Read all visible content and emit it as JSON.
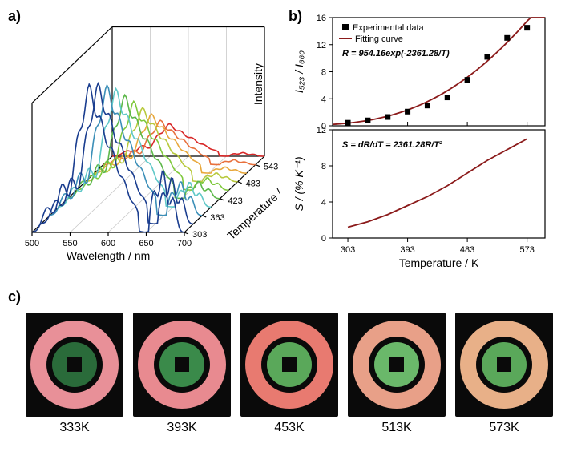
{
  "panelA": {
    "label": "a)",
    "x_axis_label": "Wavelength / nm",
    "y_axis_label": "Intensity",
    "z_axis_label": "Temperature / K",
    "x_ticks": [
      "500",
      "550",
      "600",
      "650",
      "700"
    ],
    "z_ticks": [
      "303",
      "363",
      "423",
      "483",
      "543"
    ],
    "x_range": [
      500,
      700
    ],
    "temps": [
      303,
      333,
      363,
      393,
      423,
      453,
      483,
      513,
      543,
      573
    ],
    "colors": [
      "#1a3d8f",
      "#1a3d8f",
      "#3c8fb8",
      "#5fc8c8",
      "#5db84a",
      "#7fc93c",
      "#b8c93c",
      "#e8a83c",
      "#e8703c",
      "#d82828"
    ],
    "spectrum_main_peaks": [
      {
        "x": 520,
        "h": 0.18
      },
      {
        "x": 540,
        "h": 0.35
      },
      {
        "x": 560,
        "h": 0.65
      },
      {
        "x": 575,
        "h": 1.0
      },
      {
        "x": 590,
        "h": 0.75
      },
      {
        "x": 605,
        "h": 0.55
      },
      {
        "x": 620,
        "h": 0.35
      },
      {
        "x": 635,
        "h": 0.18
      }
    ],
    "spectrum_side_peaks": [
      {
        "x": 660,
        "h": 0.3
      },
      {
        "x": 672,
        "h": 0.45
      },
      {
        "x": 685,
        "h": 0.25
      }
    ],
    "intensity_scale": [
      1.0,
      0.95,
      0.88,
      0.8,
      0.7,
      0.6,
      0.5,
      0.4,
      0.3,
      0.22
    ],
    "side_scale": [
      1.0,
      0.75,
      0.55,
      0.4,
      0.28,
      0.2,
      0.14,
      0.1,
      0.08,
      0.06
    ]
  },
  "panelB": {
    "label": "b)",
    "x_axis_label": "Temperature / K",
    "top": {
      "y_axis_label": "I₅₂₃ / I₆₆₀",
      "legend_exp": "Experimental data",
      "legend_fit": "Fitting curve",
      "equation": "R = 954.16exp(-2361.28/T)",
      "y_ticks": [
        "0",
        "4",
        "8",
        "12",
        "16"
      ],
      "ylim": [
        0,
        16
      ],
      "data_x": [
        303,
        333,
        363,
        393,
        423,
        453,
        483,
        513,
        543,
        573
      ],
      "data_y": [
        0.45,
        0.8,
        1.3,
        2.1,
        3.0,
        4.2,
        6.8,
        10.2,
        13.0,
        14.5
      ],
      "marker_color": "#000000",
      "line_color": "#8b1a1a"
    },
    "bottom": {
      "y_axis_label": "S / (% K⁻¹)",
      "equation": "S = dR/dT = 2361.28R/T²",
      "y_ticks": [
        "0",
        "4",
        "8",
        "12"
      ],
      "ylim": [
        0,
        12
      ],
      "line_color": "#8b1a1a",
      "curve_x": [
        303,
        333,
        363,
        393,
        423,
        453,
        483,
        513,
        543,
        573
      ],
      "curve_y": [
        1.2,
        1.8,
        2.6,
        3.6,
        4.6,
        5.8,
        7.2,
        8.6,
        9.8,
        11.0
      ]
    },
    "x_ticks": [
      "303",
      "393",
      "483",
      "573"
    ],
    "xlim": [
      280,
      600
    ]
  },
  "panelC": {
    "label": "c)",
    "items": [
      {
        "temp": "333K",
        "outer": "#e89098",
        "inner": "#2a6b3a"
      },
      {
        "temp": "393K",
        "outer": "#e88a90",
        "inner": "#3a8a4a"
      },
      {
        "temp": "453K",
        "outer": "#e87a70",
        "inner": "#5aa85a"
      },
      {
        "temp": "513K",
        "outer": "#e8a088",
        "inner": "#6ab86a"
      },
      {
        "temp": "573K",
        "outer": "#e8b088",
        "inner": "#5aa85a"
      }
    ]
  }
}
